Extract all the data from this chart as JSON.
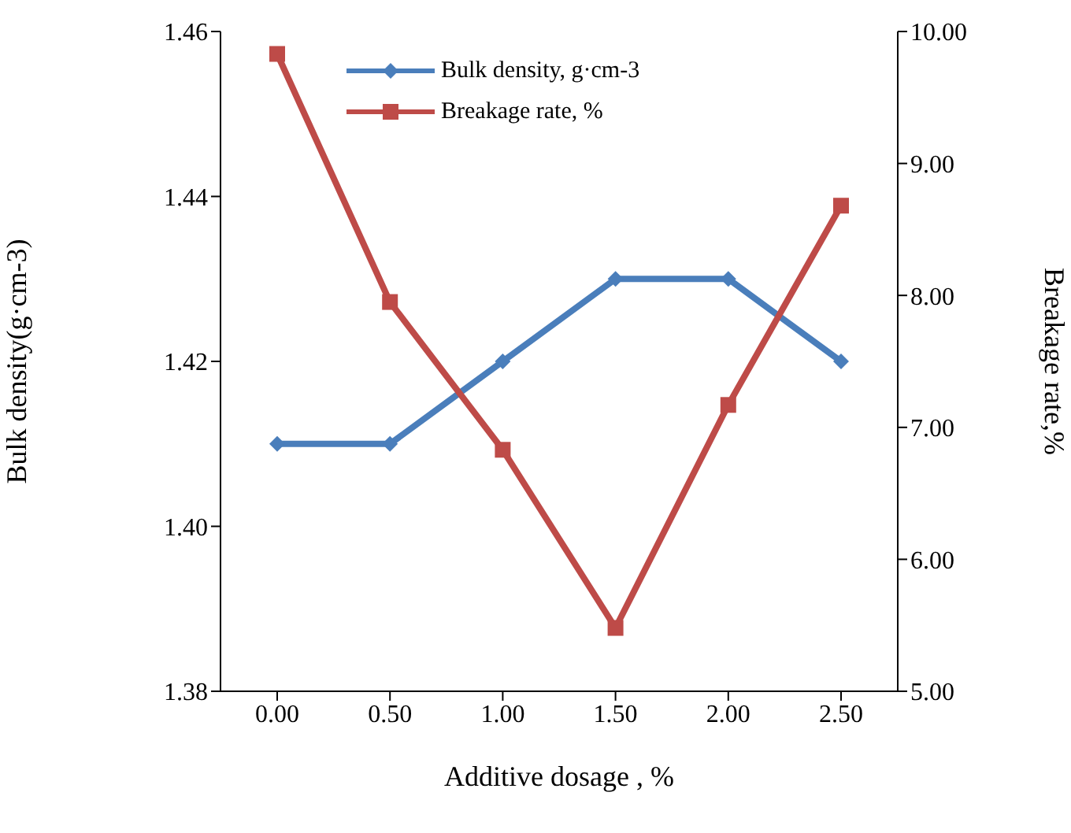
{
  "chart_data": {
    "type": "line",
    "xlabel": "Additive dosage , %",
    "ylabel": "Bulk density(g·cm-3)",
    "y2label": "Breakage rate,%",
    "categories": [
      "0.00",
      "0.50",
      "1.00",
      "1.50",
      "2.00",
      "2.50"
    ],
    "series": [
      {
        "name": "Bulk density, g·cm-3",
        "color": "#4a7ebb",
        "marker": "diamond",
        "values": [
          1.41,
          1.41,
          1.42,
          1.43,
          1.43,
          1.42
        ]
      },
      {
        "name": "Breakage rate, %",
        "color": "#be4b48",
        "marker": "square",
        "axis": "y2",
        "values": [
          9.83,
          7.95,
          6.83,
          5.48,
          7.17,
          8.68
        ]
      }
    ],
    "ylim": [
      1.38,
      1.46
    ],
    "yticks": [
      {
        "value": 1.38,
        "label": "1.38"
      },
      {
        "value": 1.4,
        "label": "1.40"
      },
      {
        "value": 1.42,
        "label": "1.42"
      },
      {
        "value": 1.44,
        "label": "1.44"
      },
      {
        "value": 1.46,
        "label": "1.46"
      }
    ],
    "y2lim": [
      5,
      10
    ],
    "y2ticks": [
      {
        "value": 5,
        "label": "5.00"
      },
      {
        "value": 6,
        "label": "6.00"
      },
      {
        "value": 7,
        "label": "7.00"
      },
      {
        "value": 8,
        "label": "8.00"
      },
      {
        "value": 9,
        "label": "9.00"
      },
      {
        "value": 10,
        "label": "10.00"
      }
    ],
    "grid": false,
    "legend": "top",
    "line_style": "solid"
  }
}
